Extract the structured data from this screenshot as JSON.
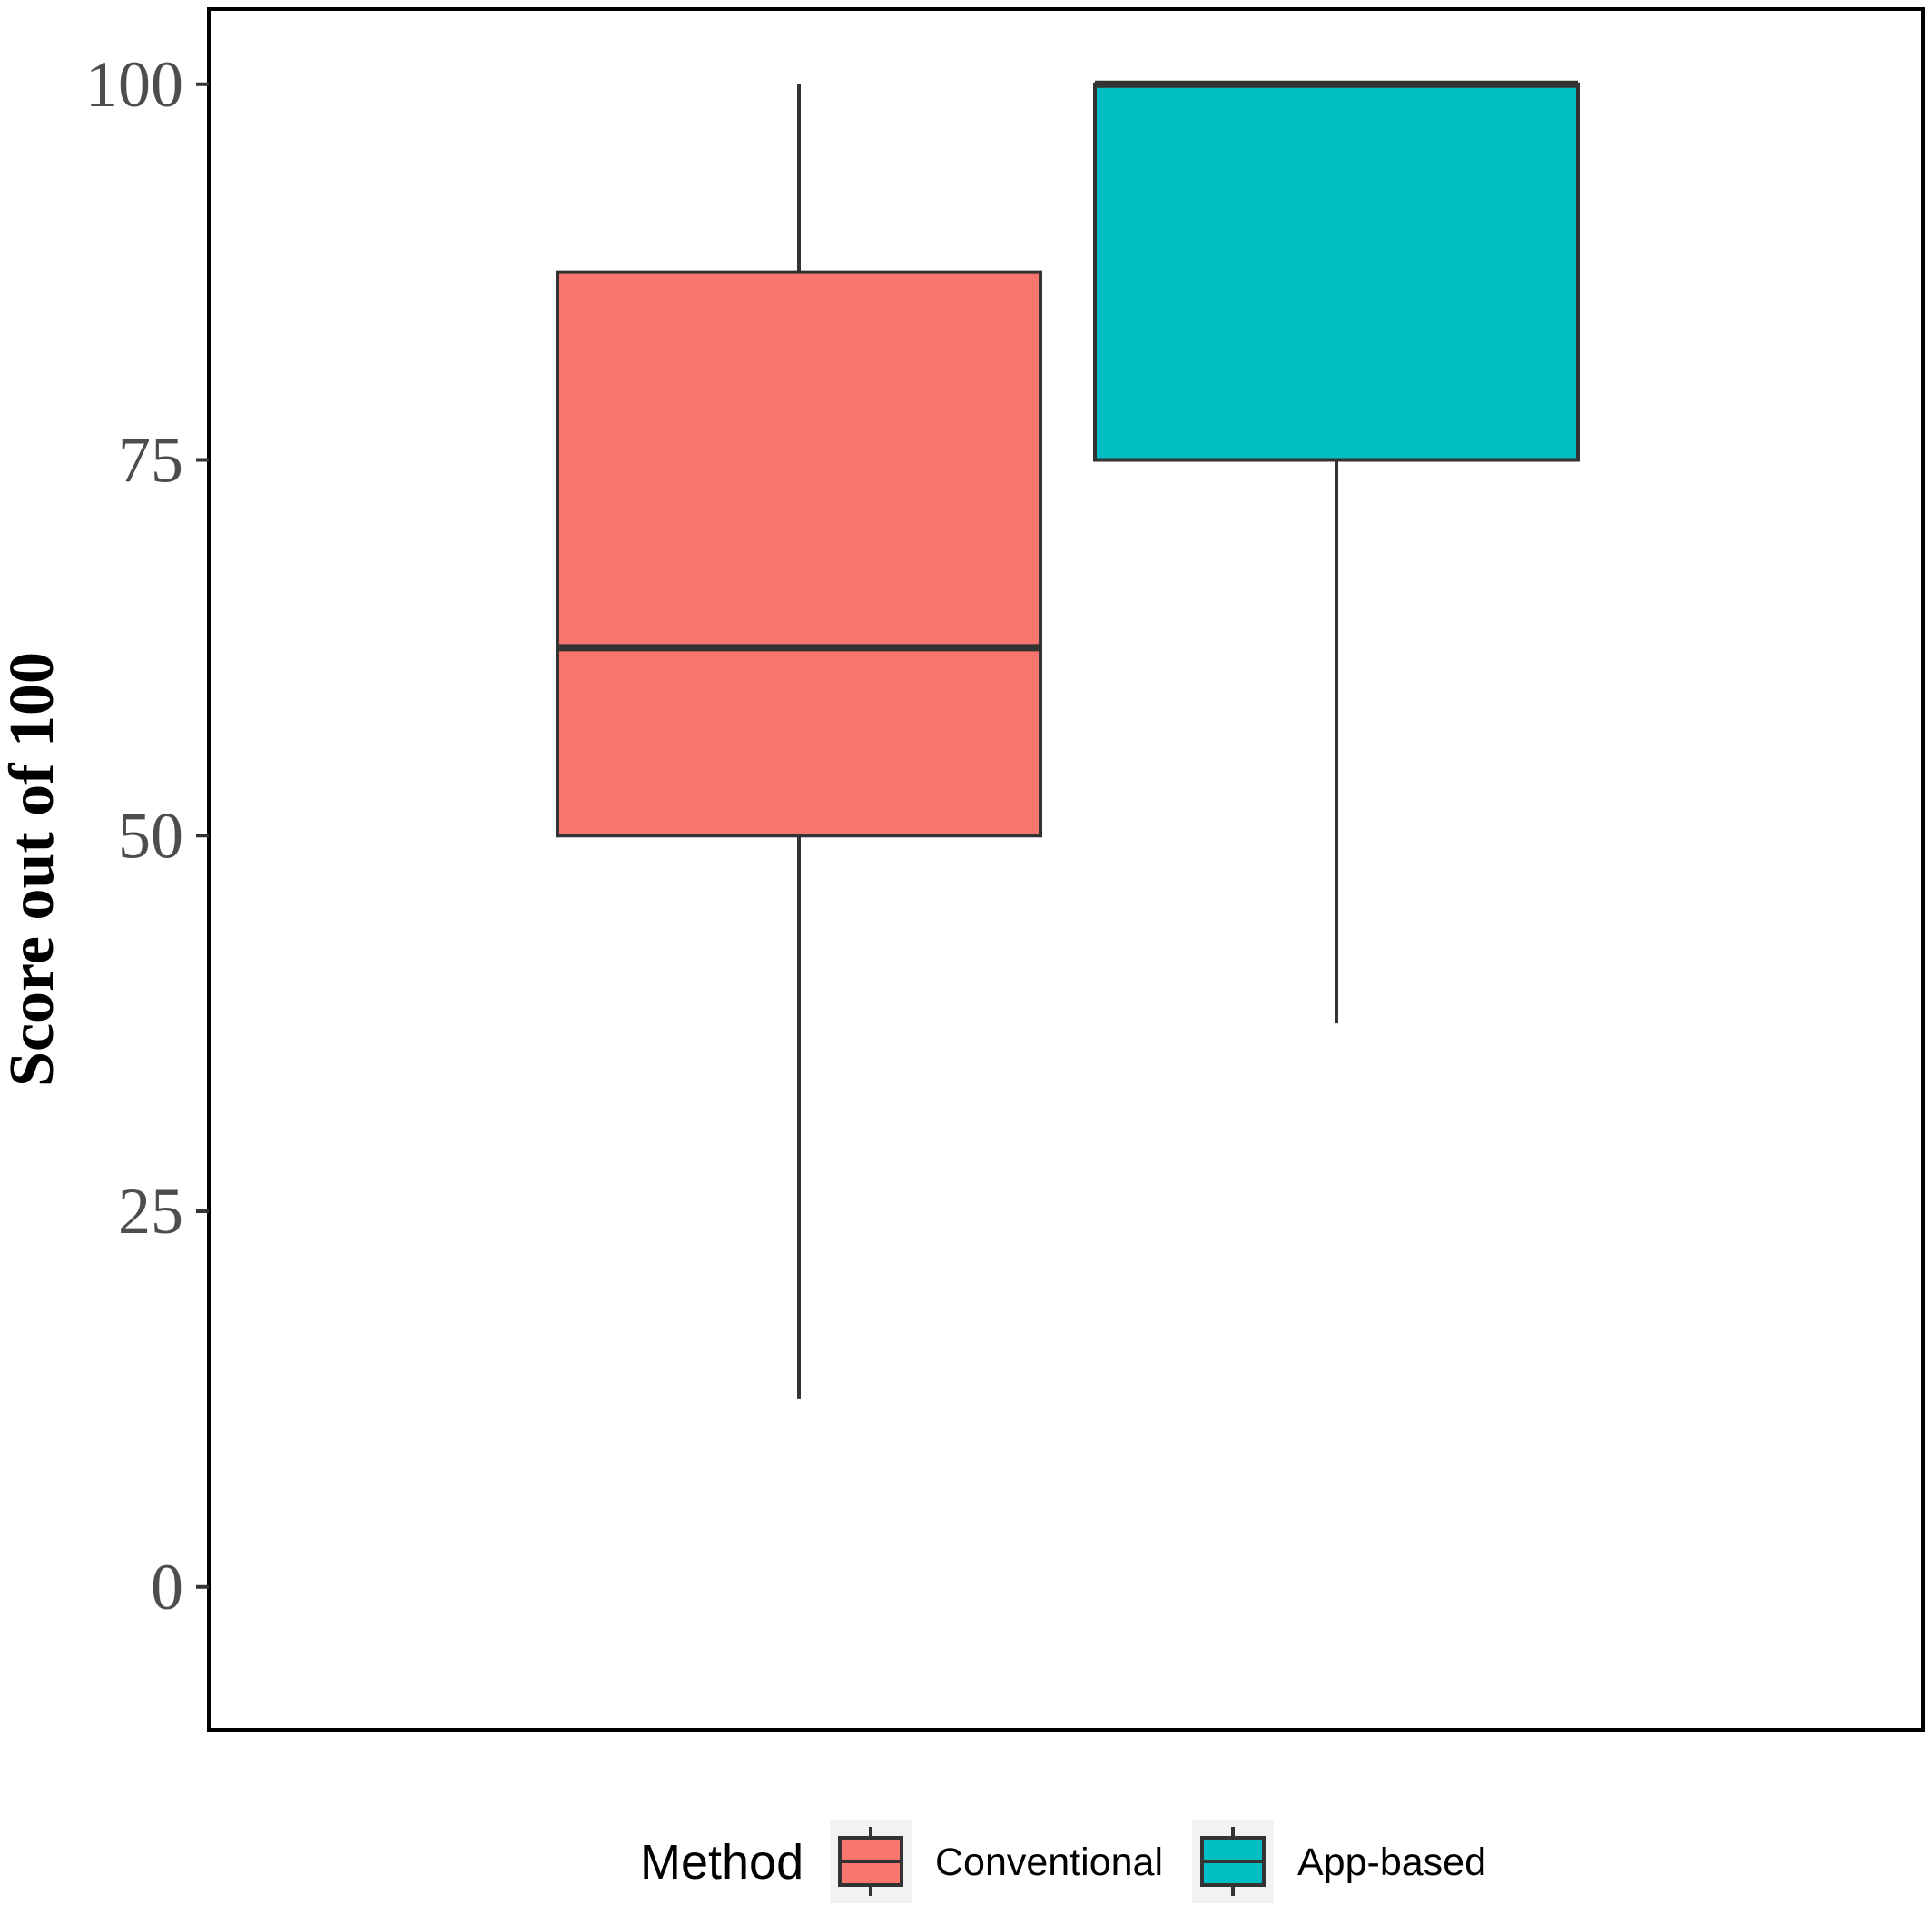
{
  "chart_data": {
    "type": "box",
    "title": "",
    "xlabel": "",
    "ylabel": "Score out of 100",
    "ylim": [
      -9.5,
      105
    ],
    "yticks": [
      0,
      25,
      50,
      75,
      100
    ],
    "ytick_labels": [
      "0",
      "25",
      "50",
      "75",
      "100"
    ],
    "grid": false,
    "legend": {
      "title": "Method",
      "placement": "bottom"
    },
    "series": [
      {
        "name": "Conventional",
        "color": "#F8766D",
        "whisker_low": 12.5,
        "q1": 50,
        "median": 62.5,
        "q3": 87.5,
        "whisker_high": 100
      },
      {
        "name": "App-based",
        "color": "#00BFC4",
        "whisker_low": 37.5,
        "q1": 75,
        "median": 100,
        "q3": 100,
        "whisker_high": 100
      }
    ]
  }
}
